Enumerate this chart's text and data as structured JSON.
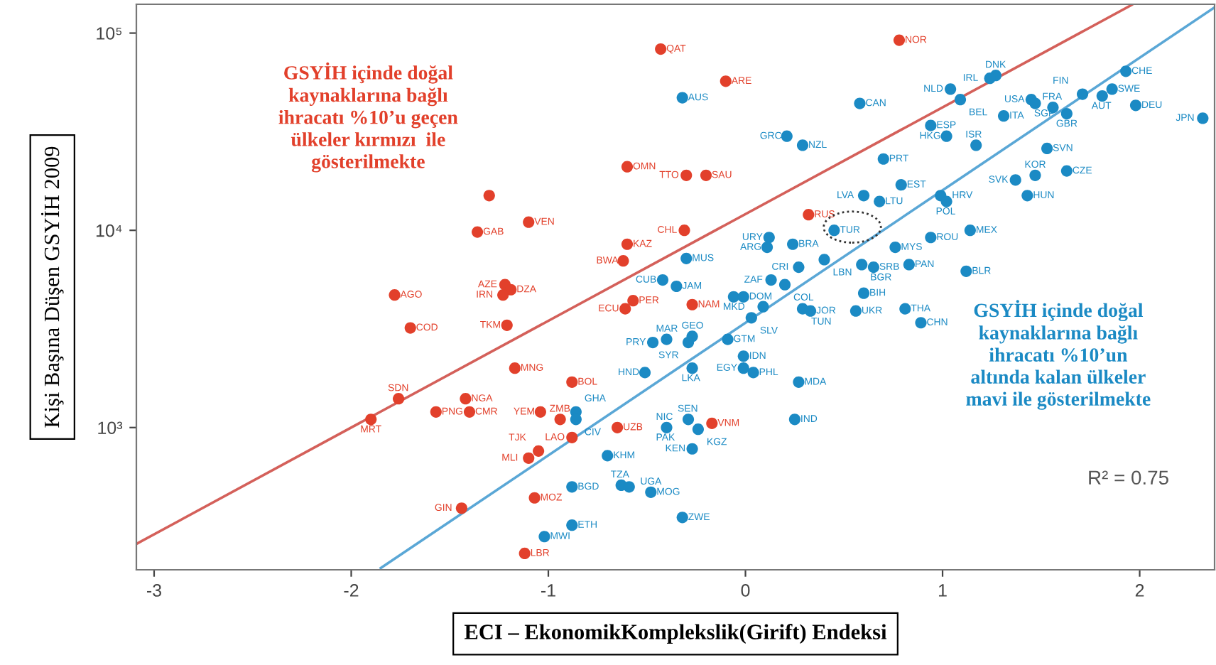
{
  "chart_data": {
    "type": "scatter",
    "xlabel": "ECI – EkonomikKomplekslik(Girift) Endeksi",
    "ylabel": "Kişi Başına Düşen GSYİH 2009",
    "xlim": [
      -3.09,
      2.38
    ],
    "ylim": [
      190,
      140000
    ],
    "xticks": [
      -3,
      -2,
      -1,
      0,
      1,
      2
    ],
    "yticks": [
      {
        "value": 1000,
        "label": "10³"
      },
      {
        "value": 10000,
        "label": "10⁴"
      },
      {
        "value": 100000,
        "label": "10⁵"
      }
    ],
    "log": "y",
    "grid": false,
    "series": [
      {
        "color": "#e2402b",
        "marker": "circle",
        "x": [
          -0.43,
          -0.1,
          0.78,
          -0.6,
          -0.3,
          -0.2,
          -0.31,
          0.32,
          -0.6,
          -0.62,
          -1.3,
          -1.36,
          -1.1,
          -1.78,
          -1.7,
          -1.22,
          -1.19,
          -1.23,
          -1.21,
          -1.17,
          -1.76,
          -1.9,
          -1.57,
          -1.42,
          -1.4,
          -1.04,
          -0.94,
          -0.88,
          -0.88,
          -0.65,
          -1.05,
          -1.1,
          -1.44,
          -1.07,
          -1.12,
          -0.57,
          -0.61,
          -0.27,
          -0.17
        ],
        "values": [
          83000,
          57000,
          92000,
          21000,
          19000,
          19000,
          10000,
          12000,
          8500,
          7000,
          15000,
          9800,
          11000,
          4700,
          3200,
          5300,
          5000,
          4700,
          3300,
          2000,
          1400,
          1100,
          1200,
          1400,
          1200,
          1200,
          1100,
          1700,
          890,
          1000,
          760,
          700,
          390,
          440,
          230,
          4400,
          4000,
          4200,
          1050
        ]
      },
      {
        "color": "#1b8ac4",
        "marker": "circle",
        "x": [
          -0.32,
          0.58,
          0.21,
          0.29,
          0.6,
          0.68,
          0.45,
          0.12,
          0.11,
          0.24,
          -0.3,
          -0.42,
          -0.35,
          0.27,
          0.13,
          0.2,
          0.4,
          -0.06,
          -0.01,
          0.09,
          0.03,
          0.29,
          0.33,
          0.56,
          0.6,
          0.81,
          0.89,
          -0.47,
          -0.4,
          -0.27,
          -0.29,
          -0.09,
          -0.01,
          -0.01,
          0.04,
          0.27,
          -0.51,
          -0.27,
          -0.86,
          -0.86,
          -0.4,
          -0.29,
          -0.24,
          -0.27,
          -0.7,
          -0.88,
          -0.63,
          -0.59,
          -0.48,
          -0.32,
          -0.88,
          -1.02,
          0.25,
          1.27,
          1.24,
          1.04,
          1.09,
          1.45,
          1.47,
          1.56,
          1.71,
          1.81,
          1.86,
          1.93,
          1.63,
          1.98,
          2.32,
          1.31,
          0.94,
          1.02,
          1.17,
          0.7,
          1.53,
          1.63,
          1.47,
          1.37,
          1.43,
          0.79,
          0.99,
          1.02,
          1.14,
          0.94,
          0.76,
          0.59,
          0.65,
          0.83,
          1.12
        ],
        "values": [
          47000,
          44000,
          30000,
          27000,
          15000,
          14000,
          10000,
          9200,
          8200,
          8500,
          7200,
          5600,
          5200,
          6500,
          5600,
          5300,
          7100,
          4600,
          4600,
          4100,
          3600,
          4000,
          3900,
          3900,
          4800,
          4000,
          3400,
          2700,
          2800,
          2900,
          2700,
          2800,
          2300,
          2000,
          1900,
          1700,
          1900,
          2000,
          1200,
          1100,
          1000,
          1100,
          980,
          780,
          720,
          500,
          510,
          500,
          470,
          350,
          320,
          280,
          1100,
          61000,
          59000,
          52000,
          46000,
          46000,
          44000,
          42000,
          49000,
          48000,
          52000,
          64000,
          39000,
          43000,
          37000,
          38000,
          34000,
          30000,
          27000,
          23000,
          26000,
          20000,
          19000,
          18000,
          15000,
          17000,
          15000,
          14000,
          10000,
          9200,
          8200,
          6700,
          6500,
          6700,
          6200
        ]
      },
      {
        "type": "line",
        "color": "#d4605a",
        "x": [
          -3.09,
          1.96
        ],
        "values": [
          257,
          139000
        ]
      },
      {
        "type": "line",
        "color": "#5aa7d6",
        "x": [
          -1.85,
          2.38
        ],
        "values": [
          194,
          135000
        ]
      }
    ],
    "annotations": [
      "GSYİH içinde doğal\nkaynaklarına bağlı\nihracatı %10’u geçen\nülkeler kırmızı  ile\ngösterilmekte",
      "GSYİH içinde doğal\nkaynaklarına bağlı\nihracatı %10’un\naltında kalan ülkeler\nmavi ile gösterilmekte",
      "R² = 0.75",
      {
        "text": "QAT",
        "x": -0.43,
        "y": 83000
      },
      {
        "text": "ARE",
        "x": -0.1,
        "y": 57000
      },
      {
        "text": "NOR",
        "x": 0.78,
        "y": 92000
      },
      {
        "text": "OMN",
        "x": -0.6,
        "y": 21000
      },
      {
        "text": "TTO",
        "x": -0.3,
        "y": 19000
      },
      {
        "text": "SAU",
        "x": -0.2,
        "y": 19000
      },
      {
        "text": "CHL",
        "x": -0.31,
        "y": 10000
      },
      {
        "text": "RUS",
        "x": 0.32,
        "y": 12000
      },
      {
        "text": "KAZ",
        "x": -0.6,
        "y": 8500
      },
      {
        "text": "BWA",
        "x": -0.62,
        "y": 7000
      },
      {
        "text": "GAB",
        "x": -1.36,
        "y": 9800
      },
      {
        "text": "VEN",
        "x": -1.1,
        "y": 11000
      },
      {
        "text": "AGO",
        "x": -1.78,
        "y": 4700
      },
      {
        "text": "COD",
        "x": -1.7,
        "y": 3200
      },
      {
        "text": "AZE",
        "x": -1.22,
        "y": 5300
      },
      {
        "text": "DZA",
        "x": -1.19,
        "y": 5000
      },
      {
        "text": "IRN",
        "x": -1.23,
        "y": 4700
      },
      {
        "text": "TKM",
        "x": -1.21,
        "y": 3300
      },
      {
        "text": "MNG",
        "x": -1.17,
        "y": 2000
      },
      {
        "text": "SDN",
        "x": -1.76,
        "y": 1400
      },
      {
        "text": "MRT",
        "x": -1.9,
        "y": 1100
      },
      {
        "text": "PNG",
        "x": -1.57,
        "y": 1200
      },
      {
        "text": "NGA",
        "x": -1.42,
        "y": 1400
      },
      {
        "text": "CMR",
        "x": -1.4,
        "y": 1200
      },
      {
        "text": "YEM",
        "x": -1.04,
        "y": 1200
      },
      {
        "text": "ZMB",
        "x": -0.94,
        "y": 1100
      },
      {
        "text": "BOL",
        "x": -0.88,
        "y": 1700
      },
      {
        "text": "LAO",
        "x": -0.88,
        "y": 890
      },
      {
        "text": "UZB",
        "x": -0.65,
        "y": 1000
      },
      {
        "text": "TJK",
        "x": -1.05,
        "y": 760
      },
      {
        "text": "MLI",
        "x": -1.1,
        "y": 700
      },
      {
        "text": "GIN",
        "x": -1.44,
        "y": 390
      },
      {
        "text": "MOZ",
        "x": -1.07,
        "y": 440
      },
      {
        "text": "LBR",
        "x": -1.12,
        "y": 230
      },
      {
        "text": "PER",
        "x": -0.57,
        "y": 4400
      },
      {
        "text": "ECU",
        "x": -0.61,
        "y": 4000
      },
      {
        "text": "NAM",
        "x": -0.27,
        "y": 4200
      },
      {
        "text": "VNM",
        "x": -0.17,
        "y": 1050
      },
      {
        "text": "AUS",
        "x": -0.32,
        "y": 47000
      },
      {
        "text": "CAN",
        "x": 0.58,
        "y": 44000
      },
      {
        "text": "GRC",
        "x": 0.21,
        "y": 30000
      },
      {
        "text": "NZL",
        "x": 0.29,
        "y": 27000
      },
      {
        "text": "LVA",
        "x": 0.6,
        "y": 15000
      },
      {
        "text": "LTU",
        "x": 0.68,
        "y": 14000
      },
      {
        "text": "TUR",
        "x": 0.45,
        "y": 10000
      },
      {
        "text": "URY",
        "x": 0.12,
        "y": 9200
      },
      {
        "text": "ARG",
        "x": 0.11,
        "y": 8200
      },
      {
        "text": "BRA",
        "x": 0.24,
        "y": 8500
      },
      {
        "text": "MUS",
        "x": -0.3,
        "y": 7200
      },
      {
        "text": "CUB",
        "x": -0.42,
        "y": 5600
      },
      {
        "text": "JAM",
        "x": -0.35,
        "y": 5200
      },
      {
        "text": "CRI",
        "x": 0.27,
        "y": 6500
      },
      {
        "text": "ZAF",
        "x": 0.13,
        "y": 5600
      },
      {
        "text": "COL",
        "x": 0.2,
        "y": 5300
      },
      {
        "text": "LBN",
        "x": 0.4,
        "y": 7100
      },
      {
        "text": "MKD",
        "x": -0.06,
        "y": 4600
      },
      {
        "text": "DOM",
        "x": -0.01,
        "y": 4600
      },
      {
        "text": "SLV",
        "x": 0.03,
        "y": 3600
      },
      {
        "text": "TUN",
        "x": 0.29,
        "y": 4000
      },
      {
        "text": "JOR",
        "x": 0.33,
        "y": 3900
      },
      {
        "text": "UKR",
        "x": 0.56,
        "y": 3900
      },
      {
        "text": "BIH",
        "x": 0.6,
        "y": 4800
      },
      {
        "text": "THA",
        "x": 0.81,
        "y": 4000
      },
      {
        "text": "CHN",
        "x": 0.89,
        "y": 3400
      },
      {
        "text": "PRY",
        "x": -0.47,
        "y": 2700
      },
      {
        "text": "MAR",
        "x": -0.4,
        "y": 2800
      },
      {
        "text": "GEO",
        "x": -0.27,
        "y": 2900
      },
      {
        "text": "SYR",
        "x": -0.29,
        "y": 2700
      },
      {
        "text": "GTM",
        "x": -0.09,
        "y": 2800
      },
      {
        "text": "IDN",
        "x": -0.01,
        "y": 2300
      },
      {
        "text": "EGY",
        "x": -0.01,
        "y": 2000
      },
      {
        "text": "PHL",
        "x": 0.04,
        "y": 1900
      },
      {
        "text": "MDA",
        "x": 0.27,
        "y": 1700
      },
      {
        "text": "HND",
        "x": -0.51,
        "y": 1900
      },
      {
        "text": "LKA",
        "x": -0.27,
        "y": 2000
      },
      {
        "text": "GHA",
        "x": -0.86,
        "y": 1200
      },
      {
        "text": "CIV",
        "x": -0.86,
        "y": 1100
      },
      {
        "text": "NIC",
        "x": -0.4,
        "y": 1000
      },
      {
        "text": "PAK",
        "x": -0.4,
        "y": 1000
      },
      {
        "text": "SEN",
        "x": -0.29,
        "y": 1100
      },
      {
        "text": "KGZ",
        "x": -0.24,
        "y": 980
      },
      {
        "text": "KEN",
        "x": -0.27,
        "y": 780
      },
      {
        "text": "KHM",
        "x": -0.7,
        "y": 720
      },
      {
        "text": "BGD",
        "x": -0.88,
        "y": 500
      },
      {
        "text": "TZA",
        "x": -0.63,
        "y": 510
      },
      {
        "text": "MOG",
        "x": -0.48,
        "y": 470
      },
      {
        "text": "UGA",
        "x": -0.48,
        "y": 470
      },
      {
        "text": "ZWE",
        "x": -0.32,
        "y": 350
      },
      {
        "text": "ETH",
        "x": -0.88,
        "y": 320
      },
      {
        "text": "MWI",
        "x": -1.02,
        "y": 280
      },
      {
        "text": "IND",
        "x": 0.25,
        "y": 1100
      },
      {
        "text": "DNK",
        "x": 1.27,
        "y": 61000
      },
      {
        "text": "IRL",
        "x": 1.24,
        "y": 59000
      },
      {
        "text": "NLD",
        "x": 1.04,
        "y": 52000
      },
      {
        "text": "BEL",
        "x": 1.09,
        "y": 46000
      },
      {
        "text": "USA",
        "x": 1.45,
        "y": 46000
      },
      {
        "text": "FRA",
        "x": 1.56,
        "y": 42000
      },
      {
        "text": "FIN",
        "x": 1.71,
        "y": 49000
      },
      {
        "text": "AUT",
        "x": 1.81,
        "y": 48000
      },
      {
        "text": "SWE",
        "x": 1.86,
        "y": 52000
      },
      {
        "text": "CHE",
        "x": 1.93,
        "y": 64000
      },
      {
        "text": "GBR",
        "x": 1.63,
        "y": 39000
      },
      {
        "text": "SGP",
        "x": 1.63,
        "y": 39000
      },
      {
        "text": "DEU",
        "x": 1.98,
        "y": 43000
      },
      {
        "text": "JPN",
        "x": 2.32,
        "y": 37000
      },
      {
        "text": "ITA",
        "x": 1.31,
        "y": 38000
      },
      {
        "text": "ESP",
        "x": 0.94,
        "y": 34000
      },
      {
        "text": "HKG",
        "x": 1.02,
        "y": 30000
      },
      {
        "text": "ISR",
        "x": 1.17,
        "y": 27000
      },
      {
        "text": "PRT",
        "x": 0.7,
        "y": 23000
      },
      {
        "text": "SVN",
        "x": 1.53,
        "y": 26000
      },
      {
        "text": "CZE",
        "x": 1.63,
        "y": 20000
      },
      {
        "text": "KOR",
        "x": 1.47,
        "y": 19000
      },
      {
        "text": "SVK",
        "x": 1.37,
        "y": 18000
      },
      {
        "text": "HUN",
        "x": 1.43,
        "y": 15000
      },
      {
        "text": "EST",
        "x": 0.79,
        "y": 17000
      },
      {
        "text": "HRV",
        "x": 0.99,
        "y": 15000
      },
      {
        "text": "POL",
        "x": 1.02,
        "y": 14000
      },
      {
        "text": "MEX",
        "x": 1.14,
        "y": 10000
      },
      {
        "text": "ROU",
        "x": 0.94,
        "y": 9200
      },
      {
        "text": "MYS",
        "x": 0.76,
        "y": 8200
      },
      {
        "text": "BGR",
        "x": 0.59,
        "y": 6700
      },
      {
        "text": "SRB",
        "x": 0.65,
        "y": 6500
      },
      {
        "text": "PAN",
        "x": 0.83,
        "y": 6700
      },
      {
        "text": "BLR",
        "x": 1.12,
        "y": 6200
      }
    ]
  }
}
